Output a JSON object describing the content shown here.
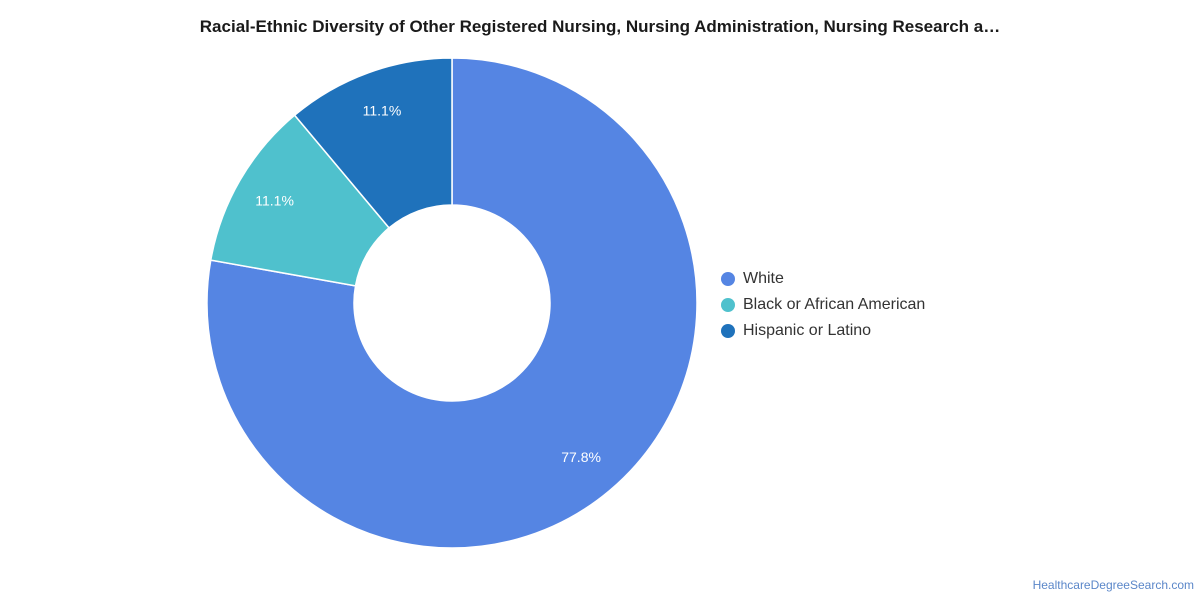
{
  "chart_data": {
    "type": "pie",
    "title": "Racial-Ethnic Diversity of Other Registered Nursing, Nursing Administration, Nursing Research a…",
    "donut": true,
    "categories": [
      "White",
      "Black or African American",
      "Hispanic or Latino"
    ],
    "values": [
      77.8,
      11.1,
      11.1
    ],
    "data_labels": [
      "77.8%",
      "11.1%",
      "11.1%"
    ],
    "colors": [
      "#5585e3",
      "#4fc1cd",
      "#1f72bb"
    ],
    "legend_placement": "right"
  },
  "source": "HealthcareDegreeSearch.com"
}
